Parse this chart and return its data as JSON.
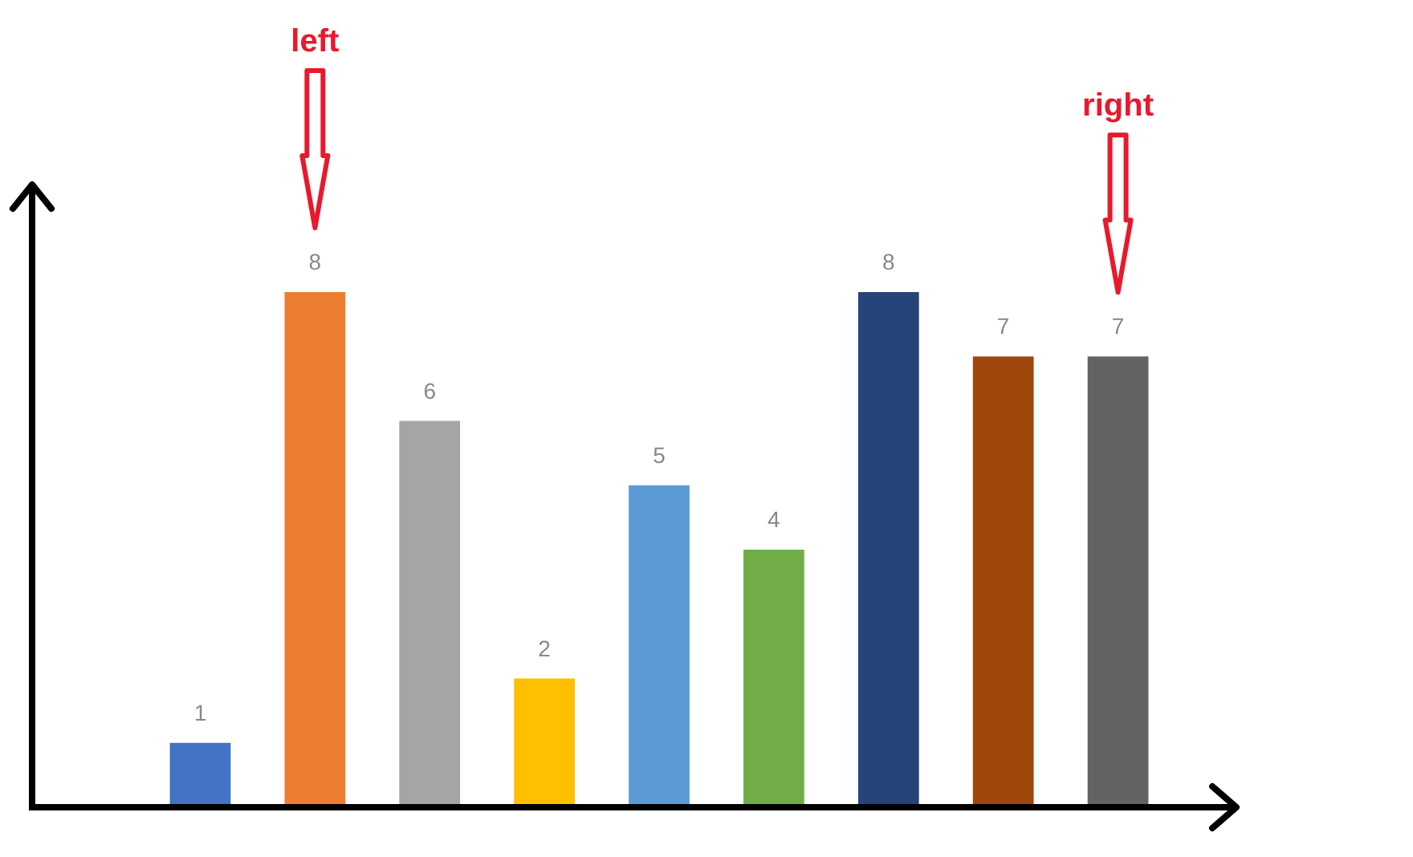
{
  "chart_data": {
    "type": "bar",
    "categories": [
      null,
      null,
      null,
      null,
      null,
      null,
      null,
      null,
      null
    ],
    "values": [
      1,
      8,
      6,
      2,
      5,
      4,
      8,
      7,
      7
    ],
    "colors": [
      "#4472c4",
      "#ed7d31",
      "#a5a5a5",
      "#ffc000",
      "#5b9bd5",
      "#70ad47",
      "#264478",
      "#9e480e",
      "#636363"
    ],
    "data_labels": true,
    "annotations": [
      "left",
      "right"
    ]
  }
}
